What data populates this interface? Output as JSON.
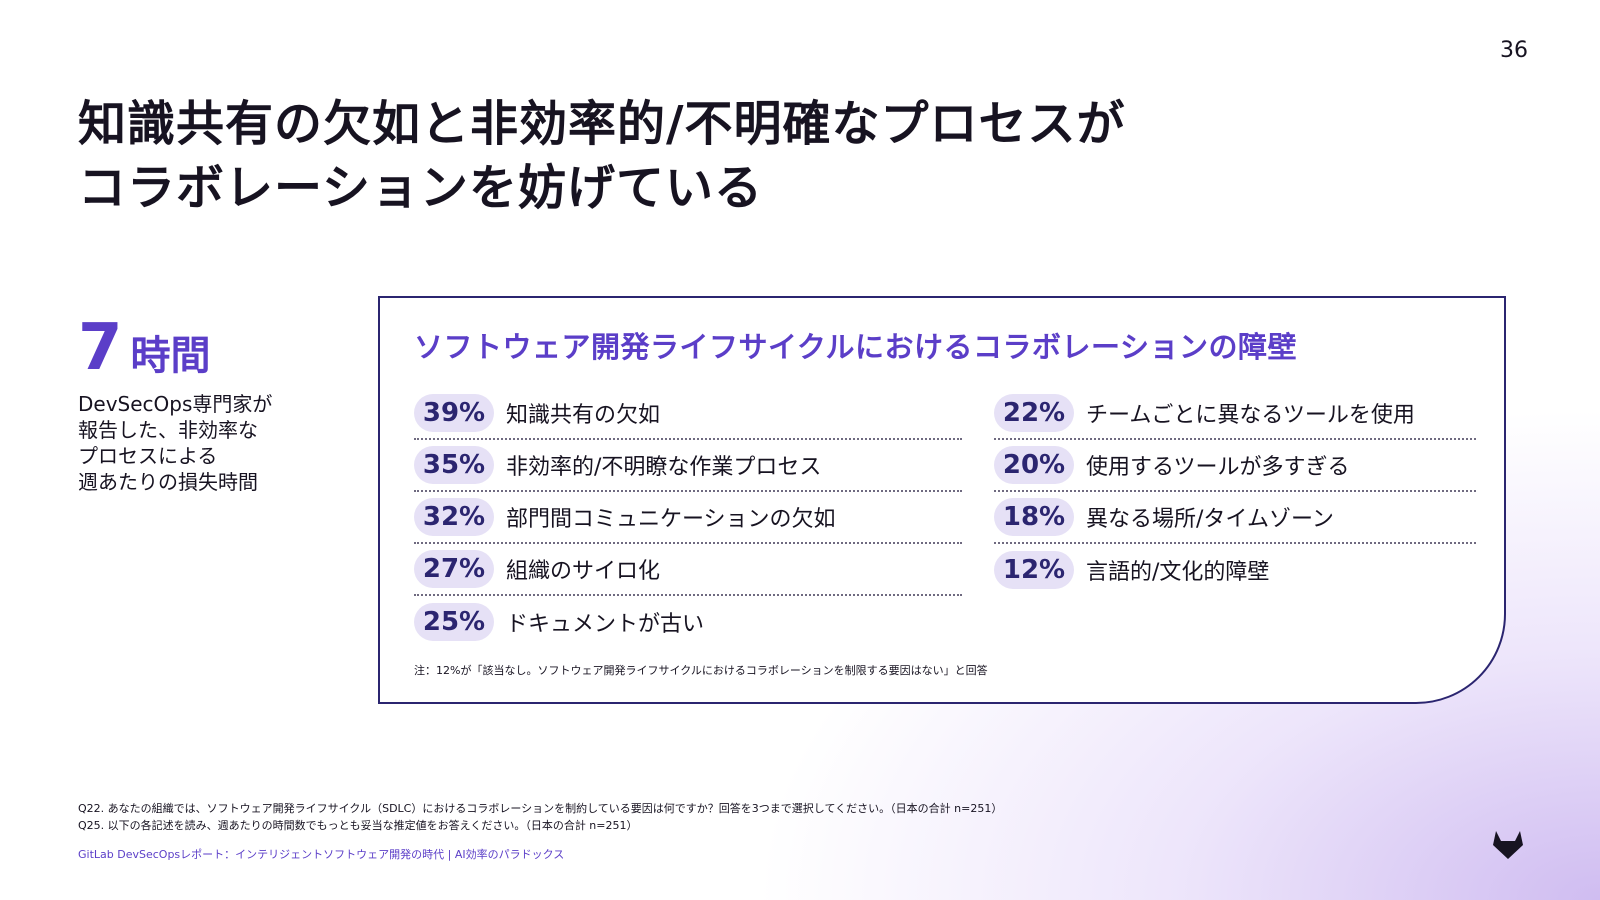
{
  "page_number": "36",
  "title": {
    "line1": "知識共有の欠如と非効率的/不明確なプロセスが",
    "line2": "コラボレーションを妨げている"
  },
  "stat": {
    "number": "7",
    "unit": "時間",
    "description": "DevSecOps専門家が\n報告した、非効率な\nプロセスによる\n週あたりの損失時間"
  },
  "panel": {
    "title": "ソフトウェア開発ライフサイクルにおけるコラボレーションの障壁",
    "left_items": [
      {
        "pct": "39%",
        "label": "知識共有の欠如"
      },
      {
        "pct": "35%",
        "label": "非効率的/不明瞭な作業プロセス"
      },
      {
        "pct": "32%",
        "label": "部門間コミュニケーションの欠如"
      },
      {
        "pct": "27%",
        "label": "組織のサイロ化"
      },
      {
        "pct": "25%",
        "label": "ドキュメントが古い"
      }
    ],
    "right_items": [
      {
        "pct": "22%",
        "label": "チームごとに異なるツールを使用"
      },
      {
        "pct": "20%",
        "label": "使用するツールが多すぎる"
      },
      {
        "pct": "18%",
        "label": "異なる場所/タイムゾーン"
      },
      {
        "pct": "12%",
        "label": "言語的/文化的障壁"
      }
    ],
    "note": "注：12%が「該当なし。ソフトウェア開発ライフサイクルにおけるコラボレーションを制限する要因はない」と回答"
  },
  "footnotes": {
    "q22": "Q22. あなたの組織では、ソフトウェア開発ライフサイクル（SDLC）におけるコラボレーションを制約している要因は何ですか？回答を3つまで選択してください。（日本の合計 n=251）",
    "q25": "Q25. 以下の各記述を読み、週あたりの時間数でもっとも妥当な推定値をお答えください。（日本の合計 n=251）"
  },
  "source": "GitLab DevSecOpsレポート：インテリジェントソフトウェア開発の時代 | AI効率のパラドックス",
  "colors": {
    "accent": "#5b3ec8",
    "navy": "#2b2570",
    "pill": "#e6e1f6",
    "logo": "#171321"
  },
  "icons": {
    "logo": "gitlab-logo-icon"
  }
}
